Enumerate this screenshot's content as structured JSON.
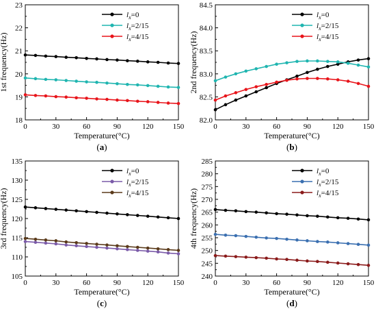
{
  "chart_data": [
    {
      "type": "line",
      "panel_label": "(a)",
      "xlabel": "Temperature(°C)",
      "ylabel": "1st frequency(Hz)",
      "xlim": [
        0,
        150
      ],
      "ylim": [
        18,
        23
      ],
      "xticks": [
        0,
        30,
        60,
        90,
        120,
        150
      ],
      "yticks": [
        18,
        19,
        20,
        21,
        22,
        23
      ],
      "legend_position": "top-right",
      "x": [
        0,
        10,
        20,
        30,
        40,
        50,
        60,
        70,
        80,
        90,
        100,
        110,
        120,
        130,
        140,
        150
      ],
      "series": [
        {
          "name": "lx=0",
          "legend_symbol": "l",
          "legend_sub": "x",
          "legend_rest": "=0",
          "color": "#000000",
          "values": [
            20.82,
            20.8,
            20.77,
            20.75,
            20.72,
            20.7,
            20.67,
            20.65,
            20.62,
            20.6,
            20.57,
            20.55,
            20.52,
            20.5,
            20.47,
            20.45
          ]
        },
        {
          "name": "lx=2/15",
          "legend_symbol": "l",
          "legend_sub": "x",
          "legend_rest": "=2/15",
          "color": "#1fb5b0",
          "values": [
            19.82,
            19.79,
            19.76,
            19.74,
            19.71,
            19.68,
            19.65,
            19.63,
            19.6,
            19.57,
            19.54,
            19.52,
            19.49,
            19.46,
            19.43,
            19.41
          ]
        },
        {
          "name": "lx=4/15",
          "legend_symbol": "l",
          "legend_sub": "x",
          "legend_rest": "=4/15",
          "color": "#e8141a",
          "values": [
            19.09,
            19.06,
            19.04,
            19.01,
            18.99,
            18.96,
            18.94,
            18.91,
            18.89,
            18.86,
            18.84,
            18.81,
            18.79,
            18.76,
            18.73,
            18.71
          ]
        }
      ]
    },
    {
      "type": "line",
      "panel_label": "(b)",
      "xlabel": "Temperature(°C)",
      "ylabel": "2nd frequency(Hz)",
      "xlim": [
        0,
        150
      ],
      "ylim": [
        82.0,
        84.5
      ],
      "xticks": [
        0,
        30,
        60,
        90,
        120,
        150
      ],
      "yticks": [
        82.0,
        82.5,
        83.0,
        83.5,
        84.0,
        84.5
      ],
      "y_decimals": 1,
      "legend_position": "top-right",
      "x": [
        0,
        10,
        20,
        30,
        40,
        50,
        60,
        70,
        80,
        90,
        100,
        110,
        120,
        130,
        140,
        150
      ],
      "series": [
        {
          "name": "lx=0",
          "legend_symbol": "l",
          "legend_sub": "x",
          "legend_rest": "=0",
          "color": "#000000",
          "values": [
            82.22,
            82.33,
            82.43,
            82.52,
            82.61,
            82.7,
            82.79,
            82.87,
            82.95,
            83.03,
            83.1,
            83.16,
            83.21,
            83.26,
            83.3,
            83.33
          ]
        },
        {
          "name": "lx=2/15",
          "legend_symbol": "l",
          "legend_sub": "x",
          "legend_rest": "=2/15",
          "color": "#1fb5b0",
          "values": [
            82.85,
            82.93,
            83.0,
            83.06,
            83.11,
            83.16,
            83.21,
            83.24,
            83.27,
            83.28,
            83.28,
            83.27,
            83.26,
            83.23,
            83.19,
            83.15
          ]
        },
        {
          "name": "lx=4/15",
          "legend_symbol": "l",
          "legend_sub": "x",
          "legend_rest": "=4/15",
          "color": "#e8141a",
          "values": [
            82.43,
            82.52,
            82.59,
            82.66,
            82.72,
            82.77,
            82.82,
            82.86,
            82.89,
            82.9,
            82.9,
            82.89,
            82.87,
            82.84,
            82.79,
            82.73
          ]
        }
      ]
    },
    {
      "type": "line",
      "panel_label": "(c)",
      "xlabel": "Temperature(°C)",
      "ylabel": "3rd frequency(Hz)",
      "xlim": [
        0,
        150
      ],
      "ylim": [
        105,
        135
      ],
      "xticks": [
        0,
        30,
        60,
        90,
        120,
        150
      ],
      "yticks": [
        105,
        110,
        115,
        120,
        125,
        130,
        135
      ],
      "legend_position": "top-right",
      "x": [
        0,
        10,
        20,
        30,
        40,
        50,
        60,
        70,
        80,
        90,
        100,
        110,
        120,
        130,
        140,
        150
      ],
      "series": [
        {
          "name": "lx=0",
          "legend_symbol": "l",
          "legend_sub": "x",
          "legend_rest": "=0",
          "color": "#000000",
          "values": [
            123.0,
            122.8,
            122.6,
            122.4,
            122.2,
            122.0,
            121.8,
            121.6,
            121.4,
            121.2,
            121.0,
            120.8,
            120.6,
            120.4,
            120.2,
            120.0
          ]
        },
        {
          "name": "lx=2/15",
          "legend_symbol": "l",
          "legend_sub": "x",
          "legend_rest": "=2/15",
          "color": "#7a5aa8",
          "values": [
            114.0,
            113.8,
            113.6,
            113.4,
            113.1,
            112.9,
            112.7,
            112.5,
            112.3,
            112.1,
            111.9,
            111.7,
            111.5,
            111.3,
            111.0,
            110.8
          ]
        },
        {
          "name": "lx=4/15",
          "legend_symbol": "l",
          "legend_sub": "x",
          "legend_rest": "=4/15",
          "color": "#5a3a1a",
          "values": [
            114.8,
            114.6,
            114.4,
            114.2,
            113.9,
            113.7,
            113.5,
            113.3,
            113.1,
            112.9,
            112.7,
            112.5,
            112.3,
            112.1,
            111.9,
            111.7
          ]
        }
      ]
    },
    {
      "type": "line",
      "panel_label": "(d)",
      "xlabel": "Temperature(°C)",
      "ylabel": "4th frequency(Hz)",
      "xlim": [
        0,
        150
      ],
      "ylim": [
        240,
        285
      ],
      "xticks": [
        0,
        30,
        60,
        90,
        120,
        150
      ],
      "yticks": [
        240,
        245,
        250,
        255,
        260,
        265,
        270,
        275,
        280,
        285
      ],
      "legend_position": "top-right",
      "x": [
        0,
        10,
        20,
        30,
        40,
        50,
        60,
        70,
        80,
        90,
        100,
        110,
        120,
        130,
        140,
        150
      ],
      "series": [
        {
          "name": "lx=0",
          "legend_symbol": "l",
          "legend_sub": "x",
          "legend_rest": "=0",
          "color": "#000000",
          "values": [
            266.0,
            265.7,
            265.5,
            265.2,
            265.0,
            264.7,
            264.4,
            264.2,
            263.9,
            263.6,
            263.4,
            263.1,
            262.8,
            262.6,
            262.3,
            262.0
          ]
        },
        {
          "name": "lx=2/15",
          "legend_symbol": "l",
          "legend_sub": "x",
          "legend_rest": "=2/15",
          "color": "#3a6fb0",
          "values": [
            256.3,
            256.0,
            255.8,
            255.5,
            255.2,
            254.9,
            254.7,
            254.4,
            254.1,
            253.8,
            253.5,
            253.3,
            253.0,
            252.7,
            252.4,
            252.1
          ]
        },
        {
          "name": "lx=4/15",
          "legend_symbol": "l",
          "legend_sub": "x",
          "legend_rest": "=4/15",
          "color": "#8a1a1a",
          "values": [
            248.0,
            247.8,
            247.6,
            247.4,
            247.2,
            247.0,
            246.7,
            246.5,
            246.2,
            245.9,
            245.7,
            245.4,
            245.1,
            244.8,
            244.5,
            244.2
          ]
        }
      ]
    }
  ]
}
